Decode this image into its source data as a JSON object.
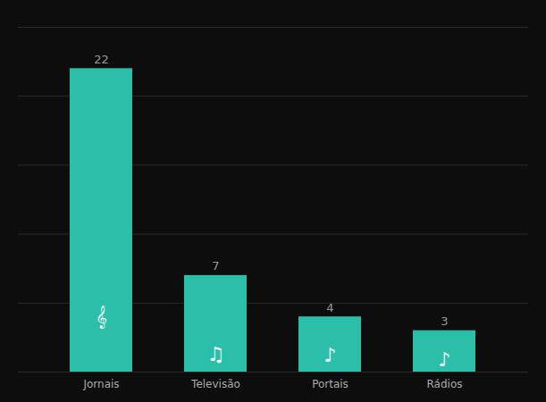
{
  "chart_data": {
    "type": "bar",
    "categories": [
      "Jornais",
      "Televisão",
      "Portais",
      "Rádios"
    ],
    "values": [
      22,
      7,
      4,
      3
    ],
    "color": "#2bbfaa",
    "ylim": [
      0,
      25
    ],
    "yticks": [
      0,
      5,
      10,
      15,
      20,
      25
    ],
    "grid": true,
    "data_labels": true,
    "tick_labels": "x",
    "annotations": [
      "𝄞",
      "♫",
      "♪",
      "♪"
    ]
  }
}
